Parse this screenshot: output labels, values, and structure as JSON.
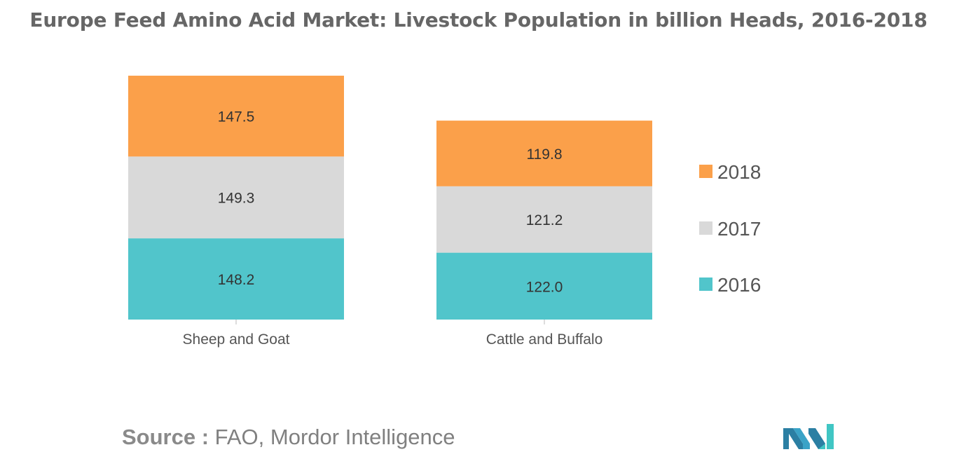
{
  "title": "Europe Feed Amino Acid Market: Livestock Population in billion Heads, 2016-2018",
  "source": {
    "label": "Source :",
    "text": "FAO, Mordor Intelligence"
  },
  "logo": {
    "icon": "mordor-intelligence-logo-icon"
  },
  "colors": {
    "2018": "#fba04a",
    "2017": "#d9d9d9",
    "2016": "#51c5cb"
  },
  "chart_data": {
    "type": "bar",
    "stacked": true,
    "title": "Europe Feed Amino Acid Market: Livestock Population in billion Heads, 2016-2018",
    "categories": [
      "Sheep and Goat",
      "Cattle and Buffalo"
    ],
    "series": [
      {
        "name": "2016",
        "values": [
          148.2,
          122.0
        ],
        "labels": [
          "148.2",
          "122.0"
        ]
      },
      {
        "name": "2017",
        "values": [
          149.3,
          121.2
        ],
        "labels": [
          "149.3",
          "121.2"
        ]
      },
      {
        "name": "2018",
        "values": [
          147.5,
          119.8
        ],
        "labels": [
          "147.5",
          "119.8"
        ]
      }
    ],
    "legend": {
      "position": "right",
      "order": [
        "2018",
        "2017",
        "2016"
      ]
    },
    "grid": false,
    "xlabel": "",
    "ylabel": ""
  }
}
